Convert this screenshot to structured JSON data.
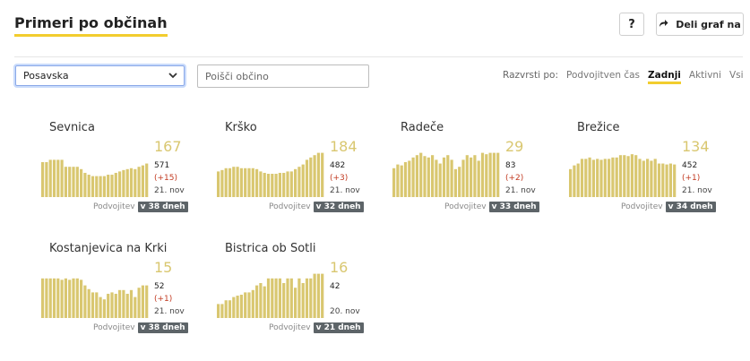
{
  "header": {
    "title": "Primeri po občinah",
    "help_label": "?",
    "share_label": "Deli graf na"
  },
  "filters": {
    "region_selected": "Posavska",
    "search_placeholder": "Poišči občino",
    "sort_label": "Razvrsti po:",
    "sort_options": [
      "Podvojitven čas",
      "Zadnji",
      "Aktivni",
      "Vsi"
    ],
    "active_sort": "Zadnji"
  },
  "colors": {
    "bar": "#d9c770",
    "accent": "#f2cd2e",
    "delta": "#c23b22",
    "badge_bg": "#5d6468"
  },
  "cards": [
    {
      "name": "Sevnica",
      "big": "167",
      "total": "571",
      "delta": "(+15)",
      "date": "21. nov",
      "doubling_label": "Podvojitev",
      "doubling_badge": "v 38 dneh",
      "bars": [
        0.75,
        0.75,
        0.8,
        0.8,
        0.8,
        0.8,
        0.65,
        0.65,
        0.65,
        0.65,
        0.6,
        0.52,
        0.48,
        0.45,
        0.45,
        0.45,
        0.45,
        0.48,
        0.48,
        0.52,
        0.55,
        0.58,
        0.6,
        0.62,
        0.6,
        0.65,
        0.68,
        0.72
      ]
    },
    {
      "name": "Krško",
      "big": "184",
      "total": "482",
      "delta": "(+3)",
      "date": "21. nov",
      "doubling_label": "Podvojitev",
      "doubling_badge": "v 32 dneh",
      "bars": [
        0.55,
        0.58,
        0.62,
        0.62,
        0.65,
        0.65,
        0.62,
        0.62,
        0.62,
        0.62,
        0.6,
        0.55,
        0.52,
        0.5,
        0.5,
        0.5,
        0.52,
        0.52,
        0.55,
        0.55,
        0.6,
        0.65,
        0.7,
        0.8,
        0.85,
        0.9,
        0.95,
        0.95
      ]
    },
    {
      "name": "Radeče",
      "big": "29",
      "total": "83",
      "delta": "(+2)",
      "date": "21. nov",
      "doubling_label": "Podvojitev",
      "doubling_badge": "v 33 dneh",
      "bars": [
        0.62,
        0.7,
        0.68,
        0.75,
        0.78,
        0.85,
        0.9,
        0.95,
        0.88,
        0.85,
        0.9,
        0.8,
        0.72,
        0.85,
        0.9,
        0.8,
        0.6,
        0.65,
        0.8,
        0.9,
        0.85,
        0.9,
        0.78,
        0.95,
        0.92,
        0.95,
        0.95,
        0.95
      ]
    },
    {
      "name": "Brežice",
      "big": "134",
      "total": "452",
      "delta": "(+1)",
      "date": "21. nov",
      "doubling_label": "Podvojitev",
      "doubling_badge": "v 34 dneh",
      "bars": [
        0.6,
        0.68,
        0.72,
        0.82,
        0.82,
        0.85,
        0.8,
        0.82,
        0.8,
        0.82,
        0.82,
        0.85,
        0.85,
        0.9,
        0.9,
        0.88,
        0.92,
        0.9,
        0.82,
        0.78,
        0.82,
        0.78,
        0.82,
        0.72,
        0.72,
        0.7,
        0.72,
        0.7
      ]
    },
    {
      "name": "Kostanjevica na Krki",
      "big": "15",
      "total": "52",
      "delta": "(+1)",
      "date": "21. nov",
      "doubling_label": "Podvojitev",
      "doubling_badge": "v 38 dneh",
      "bars": [
        0.85,
        0.85,
        0.85,
        0.85,
        0.85,
        0.82,
        0.85,
        0.82,
        0.85,
        0.85,
        0.82,
        0.7,
        0.62,
        0.55,
        0.55,
        0.45,
        0.4,
        0.52,
        0.55,
        0.52,
        0.6,
        0.6,
        0.52,
        0.6,
        0.45,
        0.65,
        0.7,
        0.7
      ]
    },
    {
      "name": "Bistrica ob Sotli",
      "big": "16",
      "total": "42",
      "delta": "",
      "date": "20. nov",
      "doubling_label": "Podvojitev",
      "doubling_badge": "v 21 dneh",
      "bars": [
        0.3,
        0.3,
        0.38,
        0.38,
        0.45,
        0.48,
        0.5,
        0.55,
        0.55,
        0.6,
        0.7,
        0.75,
        0.68,
        0.85,
        0.85,
        0.85,
        0.85,
        0.75,
        0.85,
        0.85,
        0.65,
        0.85,
        0.75,
        0.85,
        0.85,
        0.95,
        0.95,
        0.95
      ]
    }
  ]
}
